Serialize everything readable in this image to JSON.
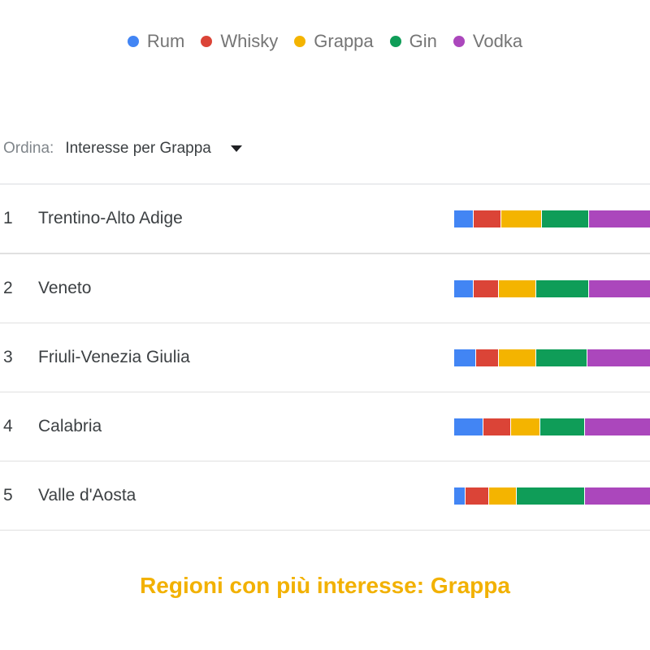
{
  "legend": [
    {
      "label": "Rum",
      "color": "#4285f4"
    },
    {
      "label": "Whisky",
      "color": "#db4437"
    },
    {
      "label": "Grappa",
      "color": "#f4b400"
    },
    {
      "label": "Gin",
      "color": "#0f9d58"
    },
    {
      "label": "Vodka",
      "color": "#ab47bc"
    }
  ],
  "sort": {
    "label": "Ordina:",
    "value": "Interesse per Grappa"
  },
  "rows": [
    {
      "rank": "1",
      "name": "Trentino-Alto Adige",
      "shares": [
        10,
        14,
        21,
        24,
        31
      ]
    },
    {
      "rank": "2",
      "name": "Veneto",
      "shares": [
        10,
        13,
        19,
        27,
        31
      ]
    },
    {
      "rank": "3",
      "name": "Friuli-Venezia Giulia",
      "shares": [
        11,
        12,
        19,
        26,
        32
      ]
    },
    {
      "rank": "4",
      "name": "Calabria",
      "shares": [
        15,
        14,
        15,
        23,
        33
      ]
    },
    {
      "rank": "5",
      "name": "Valle d'Aosta",
      "shares": [
        6,
        12,
        14,
        35,
        33
      ]
    }
  ],
  "title": "Regioni con più interesse: Grappa"
}
